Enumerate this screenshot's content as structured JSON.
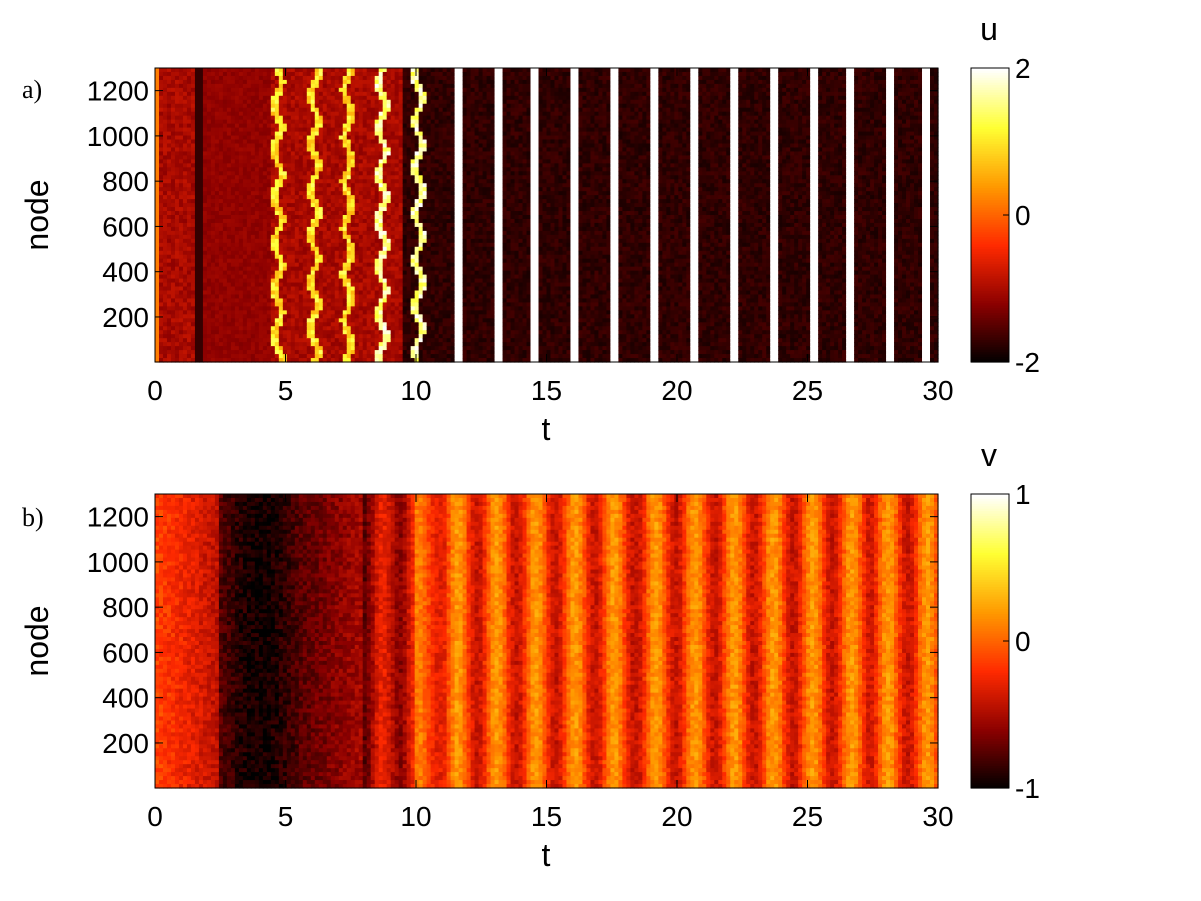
{
  "chart_data": [
    {
      "panel_label": "a)",
      "type": "heatmap",
      "xlabel": "t",
      "ylabel": "node",
      "xlim": [
        0,
        30
      ],
      "ylim": [
        1,
        1300
      ],
      "xticks": [
        0,
        5,
        10,
        15,
        20,
        25,
        30
      ],
      "yticks": [
        200,
        400,
        600,
        800,
        1000,
        1200
      ],
      "colorbar": {
        "label": "u",
        "range": [
          -2,
          2
        ],
        "ticks": [
          -2,
          0,
          2
        ]
      },
      "colormap": "hot",
      "colormap_stops": [
        "#000000",
        "#8b0000",
        "#ff2a00",
        "#ff9900",
        "#ffff33",
        "#ffffff"
      ],
      "description_values": {
        "rest_level": -1.0,
        "dark_band_t": 1.7,
        "spike_times": [
          4.7,
          6.1,
          7.4,
          8.7,
          10.1,
          11.6,
          13.1,
          14.6,
          16.1,
          17.6,
          19.2,
          20.7,
          22.2,
          23.7,
          25.2,
          26.7,
          28.1,
          29.6
        ],
        "spike_peak": 2.0,
        "trough_after_spike": -2.0
      }
    },
    {
      "panel_label": "b)",
      "type": "heatmap",
      "xlabel": "t",
      "ylabel": "node",
      "xlim": [
        0,
        30
      ],
      "ylim": [
        1,
        1300
      ],
      "xticks": [
        0,
        5,
        10,
        15,
        20,
        25,
        30
      ],
      "yticks": [
        200,
        400,
        600,
        800,
        1000,
        1200
      ],
      "colorbar": {
        "label": "v",
        "range": [
          -1,
          1
        ],
        "ticks": [
          -1,
          0,
          1
        ]
      },
      "colormap": "hot",
      "colormap_stops": [
        "#000000",
        "#8b0000",
        "#ff2a00",
        "#ff9900",
        "#ffff33",
        "#ffffff"
      ],
      "description_values": {
        "initial_level": -0.1,
        "minimum_t": 4.8,
        "minimum_level": -0.95,
        "oscillation_times": [
          8.7,
          10.1,
          11.6,
          13.1,
          14.6,
          16.1,
          17.6,
          19.2,
          20.7,
          22.2,
          23.7,
          25.2,
          26.7,
          28.1,
          29.6
        ],
        "oscillation_peak": 0.3,
        "oscillation_trough": -0.3
      }
    }
  ]
}
